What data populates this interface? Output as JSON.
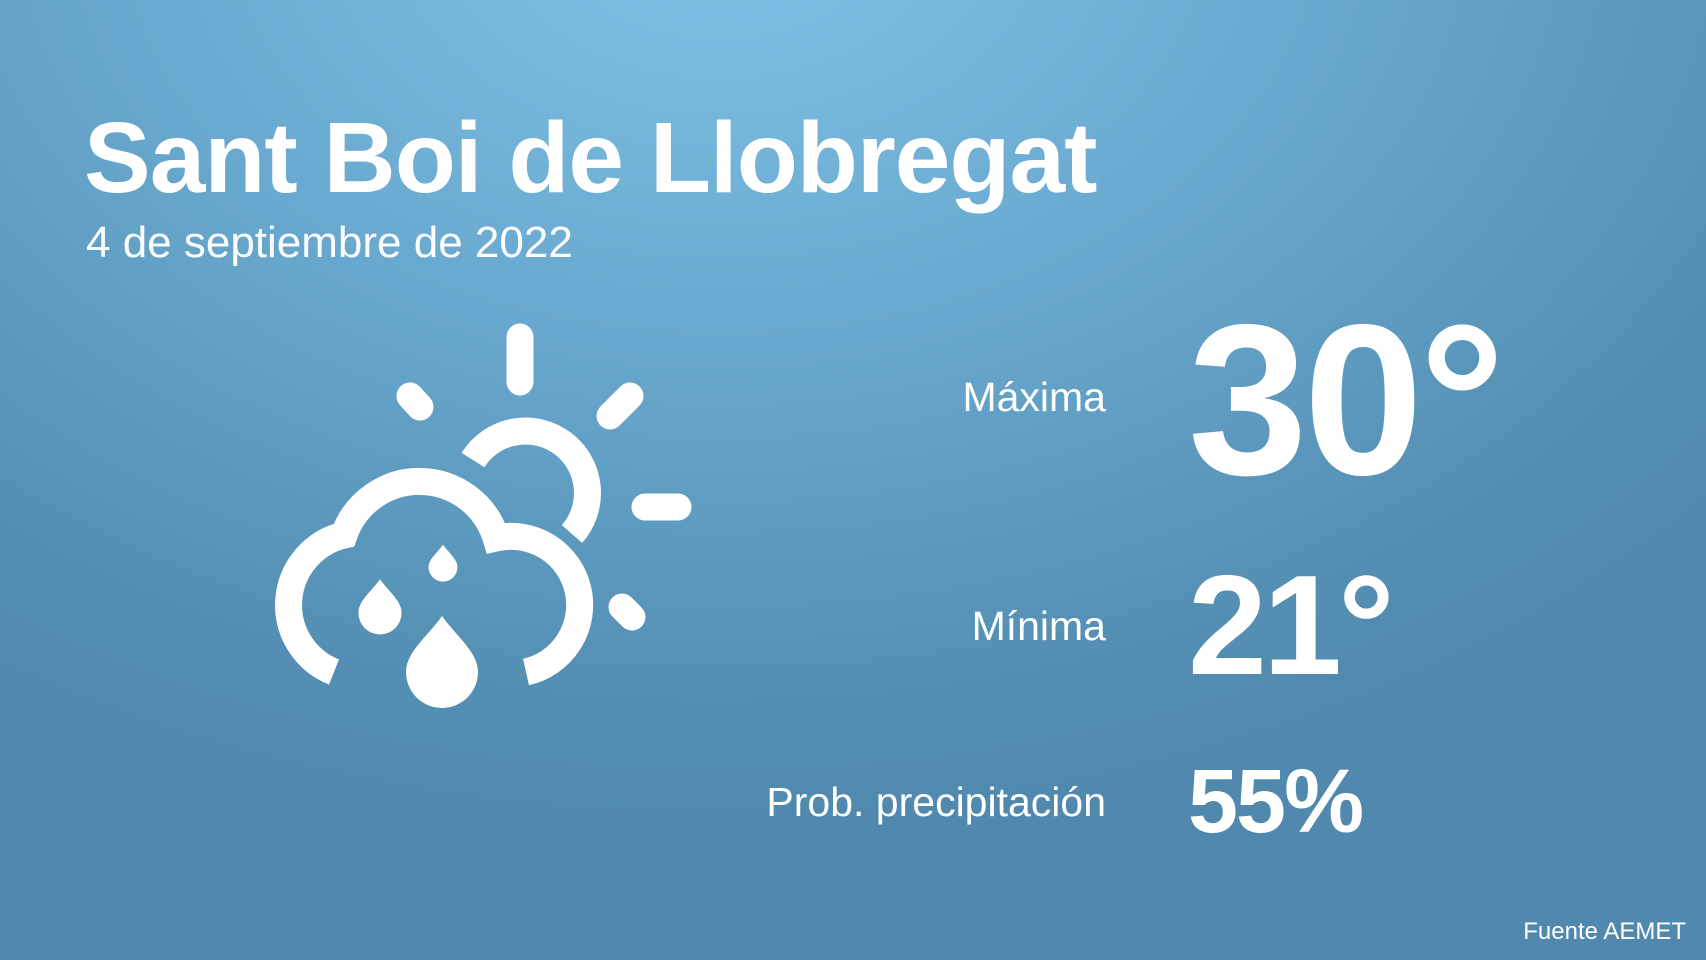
{
  "header": {
    "city": "Sant Boi de Llobregat",
    "date": "4 de septiembre de 2022"
  },
  "weather": {
    "icon": "sun-cloud-rain-icon",
    "max_label": "Máxima",
    "max_value": "30°",
    "min_label": "Mínima",
    "min_value": "21°",
    "precip_label": "Prob. precipitación",
    "precip_value": "55%"
  },
  "footer": {
    "source": "Fuente AEMET"
  },
  "colors": {
    "background_top": "#80c3e7",
    "background_bottom": "#5089ad",
    "text": "#ffffff"
  }
}
